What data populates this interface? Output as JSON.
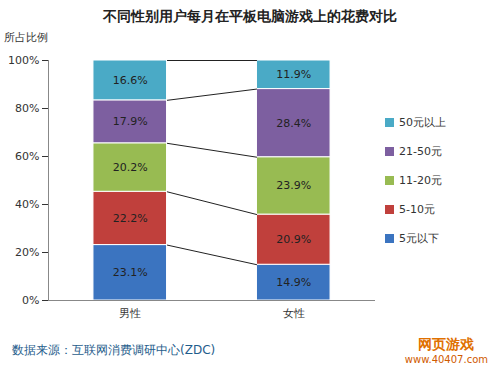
{
  "chart_data": {
    "type": "bar",
    "stacked": true,
    "title": "不同性别用户每月在平板电脑游戏上的花费对比",
    "y_label": "所占比例",
    "categories": [
      "男性",
      "女性"
    ],
    "series": [
      {
        "name": "5元以下",
        "color": "#3b74c0",
        "values": [
          23.1,
          14.9
        ],
        "value_labels": [
          "23.1%",
          "14.9%"
        ]
      },
      {
        "name": "5-10元",
        "color": "#c0403c",
        "values": [
          22.2,
          20.9
        ],
        "value_labels": [
          "22.2%",
          "20.9%"
        ]
      },
      {
        "name": "11-20元",
        "color": "#98bb52",
        "values": [
          20.2,
          23.9
        ],
        "value_labels": [
          "20.2%",
          "23.9%"
        ]
      },
      {
        "name": "21-50元",
        "color": "#7d5fa0",
        "values": [
          17.9,
          28.4
        ],
        "value_labels": [
          "17.9%",
          "28.4%"
        ]
      },
      {
        "name": "50元以上",
        "color": "#4aaac6",
        "values": [
          16.6,
          11.9
        ],
        "value_labels": [
          "16.6%",
          "11.9%"
        ]
      }
    ],
    "ylim": [
      0,
      100
    ],
    "yticks": [
      {
        "value": 0,
        "label": "0%"
      },
      {
        "value": 20,
        "label": "20%"
      },
      {
        "value": 40,
        "label": "40%"
      },
      {
        "value": 60,
        "label": "60%"
      },
      {
        "value": 80,
        "label": "80%"
      },
      {
        "value": 100,
        "label": "100%"
      }
    ],
    "data_labels": true,
    "legend": "right",
    "grid": false,
    "source": "数据来源：互联网消费调研中心(ZDC)",
    "annotations": [
      "网页游戏",
      "www.40407.com"
    ]
  }
}
